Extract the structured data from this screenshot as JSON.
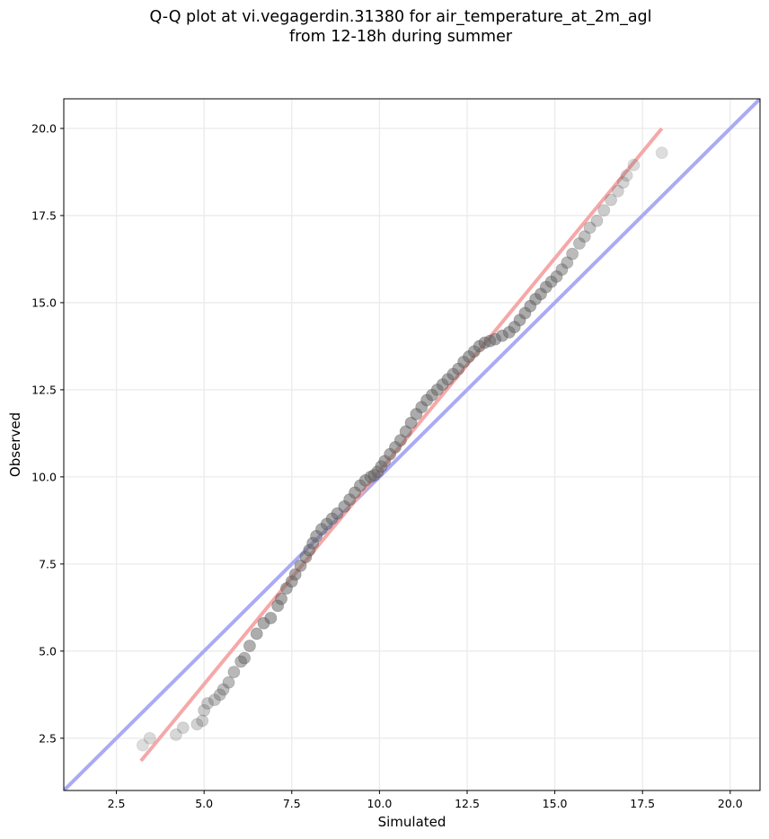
{
  "chart_data": {
    "type": "scatter",
    "title_line1": "Q-Q plot at vi.vegagerdin.31380 for air_temperature_at_2m_agl",
    "title_line2": "from 12-18h during summer",
    "xlabel": "Simulated",
    "ylabel": "Observed",
    "xlim": [
      1.0,
      20.85
    ],
    "ylim": [
      1.0,
      20.85
    ],
    "xticks": [
      "2.5",
      "5.0",
      "7.5",
      "10.0",
      "12.5",
      "15.0",
      "17.5",
      "20.0"
    ],
    "yticks": [
      "2.5",
      "5.0",
      "7.5",
      "10.0",
      "12.5",
      "15.0",
      "17.5",
      "20.0"
    ],
    "grid": true,
    "reference_line": {
      "x": [
        1.0,
        20.85
      ],
      "y": [
        1.0,
        20.85
      ],
      "color": "#aaaaf5"
    },
    "fit_line": {
      "x": [
        3.2,
        18.05
      ],
      "y": [
        1.85,
        20.0
      ],
      "color": "#f5a8a8"
    },
    "points": {
      "x": [
        3.25,
        3.45,
        4.2,
        4.4,
        4.8,
        4.95,
        5.0,
        5.1,
        5.3,
        5.45,
        5.55,
        5.7,
        5.85,
        6.05,
        6.15,
        6.3,
        6.5,
        6.7,
        6.9,
        7.1,
        7.2,
        7.35,
        7.5,
        7.6,
        7.75,
        7.9,
        8.0,
        8.1,
        8.2,
        8.35,
        8.5,
        8.65,
        8.8,
        9.0,
        9.15,
        9.3,
        9.45,
        9.6,
        9.75,
        9.85,
        9.95,
        10.05,
        10.15,
        10.3,
        10.45,
        10.6,
        10.75,
        10.9,
        11.05,
        11.2,
        11.35,
        11.5,
        11.65,
        11.8,
        11.95,
        12.1,
        12.25,
        12.4,
        12.55,
        12.7,
        12.85,
        13.0,
        13.15,
        13.3,
        13.5,
        13.7,
        13.85,
        14.0,
        14.15,
        14.3,
        14.45,
        14.6,
        14.75,
        14.9,
        15.05,
        15.2,
        15.35,
        15.5,
        15.7,
        15.85,
        16.0,
        16.2,
        16.4,
        16.6,
        16.8,
        16.95,
        17.05,
        17.25,
        18.05
      ],
      "y": [
        2.3,
        2.5,
        2.6,
        2.8,
        2.9,
        3.0,
        3.3,
        3.5,
        3.6,
        3.75,
        3.9,
        4.1,
        4.4,
        4.7,
        4.8,
        5.15,
        5.5,
        5.8,
        5.95,
        6.3,
        6.5,
        6.8,
        7.0,
        7.2,
        7.45,
        7.7,
        7.9,
        8.1,
        8.3,
        8.5,
        8.65,
        8.8,
        8.95,
        9.15,
        9.35,
        9.55,
        9.75,
        9.9,
        10.0,
        10.05,
        10.15,
        10.3,
        10.45,
        10.65,
        10.85,
        11.05,
        11.3,
        11.55,
        11.8,
        12.0,
        12.2,
        12.35,
        12.5,
        12.65,
        12.8,
        12.95,
        13.1,
        13.3,
        13.45,
        13.6,
        13.75,
        13.85,
        13.9,
        13.95,
        14.05,
        14.15,
        14.3,
        14.5,
        14.7,
        14.9,
        15.1,
        15.25,
        15.45,
        15.6,
        15.75,
        15.95,
        16.15,
        16.4,
        16.7,
        16.9,
        17.15,
        17.35,
        17.65,
        17.95,
        18.2,
        18.45,
        18.65,
        18.95,
        19.3
      ]
    }
  }
}
